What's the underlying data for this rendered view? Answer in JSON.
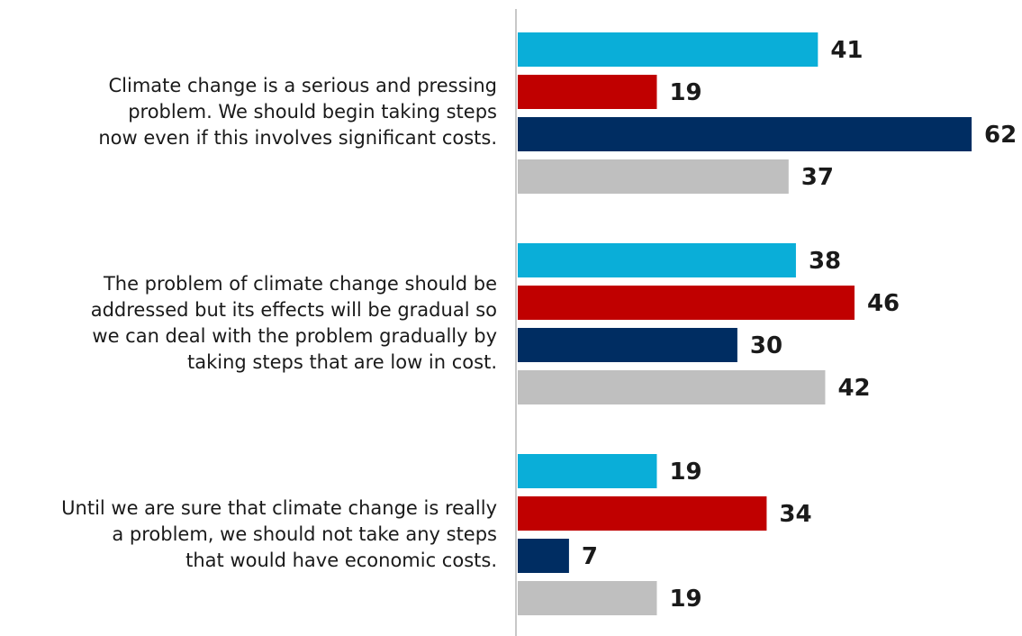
{
  "chart_data": {
    "type": "bar",
    "orientation": "horizontal",
    "title": "",
    "xlabel": "",
    "ylabel": "",
    "xlim": [
      0,
      62
    ],
    "grid": false,
    "legend": "none",
    "categories": [
      "Climate change is a serious and pressing\nproblem. We should begin taking steps\nnow even if this involves significant costs.",
      "The problem of climate change should be\naddressed but its effects will be gradual so\nwe can deal with the problem gradually by\ntaking steps that are low in cost.",
      "Until we are sure that climate change is really\na problem, we should not take any steps\nthat would have economic costs."
    ],
    "series": [
      {
        "color": "#0aaed8",
        "values": [
          41,
          38,
          19
        ]
      },
      {
        "color": "#c00000",
        "values": [
          19,
          46,
          34
        ]
      },
      {
        "color": "#002d62",
        "values": [
          62,
          30,
          7
        ]
      },
      {
        "color": "#bfbfbf",
        "values": [
          37,
          42,
          19
        ]
      }
    ]
  }
}
